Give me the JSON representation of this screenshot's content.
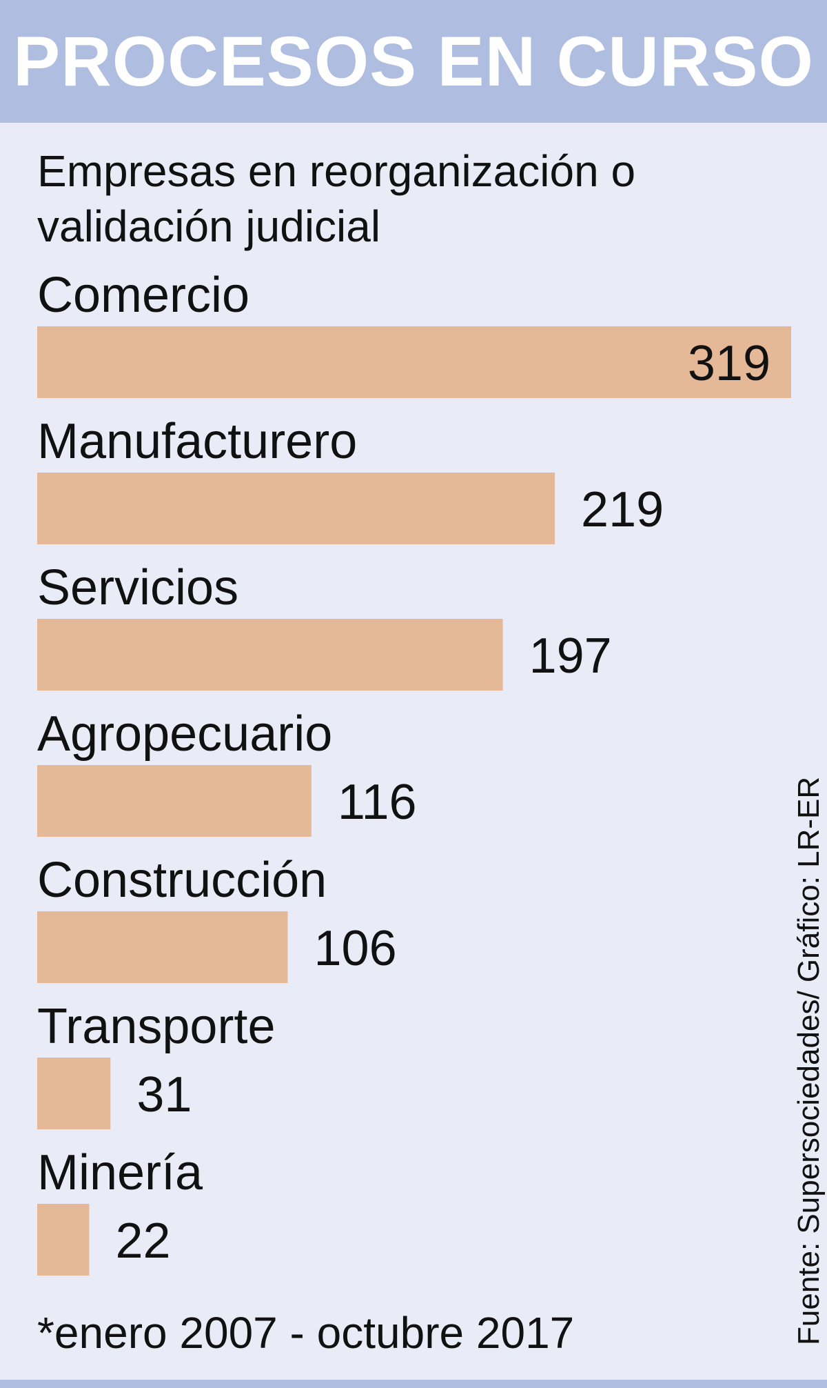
{
  "header": {
    "title": "PROCESOS EN CURSO"
  },
  "chart_data": {
    "type": "bar",
    "orientation": "horizontal",
    "title": "Empresas en reorganización o validación judicial",
    "categories": [
      "Comercio",
      "Manufacturero",
      "Servicios",
      "Agropecuario",
      "Construcción",
      "Transporte",
      "Minería"
    ],
    "values": [
      319,
      219,
      197,
      116,
      106,
      31,
      22
    ],
    "value_labels": [
      "319",
      "219",
      "197",
      "116",
      "106",
      "31",
      "22"
    ],
    "xlim": [
      0,
      319
    ],
    "grid": false,
    "legend": "none",
    "colors": {
      "bar": "#e5b898",
      "header": "#aebde0",
      "background": "#e9ebf6",
      "text": "#111111"
    }
  },
  "footnote": "*enero 2007 - octubre 2017",
  "source": "Fuente: Supersociedades/ Gráfico: LR-ER"
}
